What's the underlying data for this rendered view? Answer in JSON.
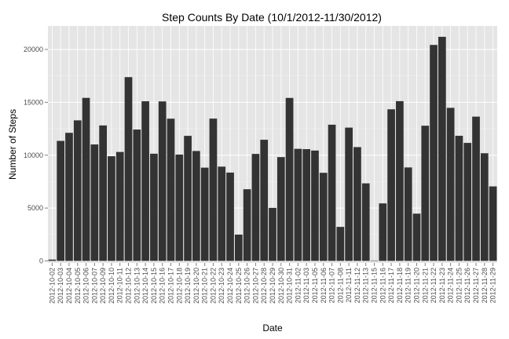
{
  "chart_data": {
    "type": "bar",
    "title": "Step Counts By Date (10/1/2012-11/30/2012)",
    "xlabel": "Date",
    "ylabel": "Number of Steps",
    "ylim": [
      0,
      22200
    ],
    "yticks": [
      0,
      5000,
      10000,
      15000,
      20000
    ],
    "grid": true,
    "legend": "none",
    "colors": {
      "panel": "#e5e5e5",
      "grid": "#ffffff",
      "bar": "#333333",
      "tick_text": "#4d4d4d"
    },
    "categories": [
      "2012-10-02",
      "2012-10-03",
      "2012-10-04",
      "2012-10-05",
      "2012-10-06",
      "2012-10-07",
      "2012-10-09",
      "2012-10-10",
      "2012-10-11",
      "2012-10-12",
      "2012-10-13",
      "2012-10-14",
      "2012-10-15",
      "2012-10-16",
      "2012-10-17",
      "2012-10-18",
      "2012-10-19",
      "2012-10-20",
      "2012-10-21",
      "2012-10-22",
      "2012-10-23",
      "2012-10-24",
      "2012-10-25",
      "2012-10-26",
      "2012-10-27",
      "2012-10-28",
      "2012-10-29",
      "2012-10-30",
      "2012-10-31",
      "2012-11-02",
      "2012-11-03",
      "2012-11-05",
      "2012-11-06",
      "2012-11-07",
      "2012-11-08",
      "2012-11-11",
      "2012-11-12",
      "2012-11-13",
      "2012-11-15",
      "2012-11-16",
      "2012-11-17",
      "2012-11-18",
      "2012-11-19",
      "2012-11-20",
      "2012-11-21",
      "2012-11-22",
      "2012-11-23",
      "2012-11-24",
      "2012-11-25",
      "2012-11-26",
      "2012-11-27",
      "2012-11-28",
      "2012-11-29"
    ],
    "values": [
      126,
      11352,
      12116,
      13294,
      15420,
      11015,
      12811,
      9900,
      10304,
      17382,
      12426,
      15098,
      10139,
      15084,
      13452,
      10056,
      11829,
      10395,
      8821,
      13460,
      8918,
      8355,
      2492,
      6778,
      10119,
      11458,
      5018,
      9819,
      15414,
      10600,
      10571,
      10439,
      8334,
      12883,
      3219,
      12608,
      10765,
      7336,
      41,
      5441,
      14339,
      15110,
      8841,
      4472,
      12787,
      20427,
      21194,
      14478,
      11834,
      11162,
      13646,
      10183,
      7047
    ]
  }
}
